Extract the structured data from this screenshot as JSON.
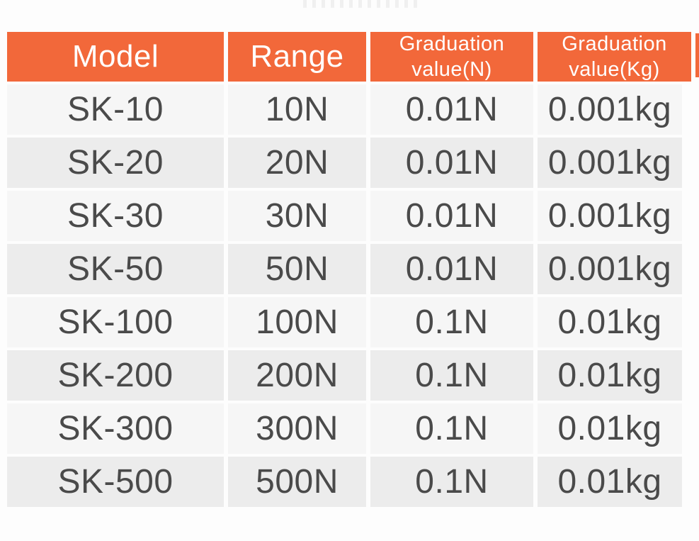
{
  "colors": {
    "header_bg": "#f2683a",
    "header_text": "#ffffff",
    "row_light_bg": "#f6f6f6",
    "row_dark_bg": "#ececec",
    "cell_text": "#4a4a4a"
  },
  "table": {
    "columns": [
      {
        "label": "Model",
        "lines": [
          "Model"
        ]
      },
      {
        "label": "Range",
        "lines": [
          "Range"
        ]
      },
      {
        "label": "Graduation value(N)",
        "lines": [
          "Graduation",
          "value(N)"
        ]
      },
      {
        "label": "Graduation value(Kg)",
        "lines": [
          "Graduation",
          "value(Kg)"
        ]
      }
    ]
  },
  "chart_data": {
    "type": "table",
    "columns": [
      "Model",
      "Range",
      "Graduation value(N)",
      "Graduation value(Kg)"
    ],
    "rows": [
      [
        "SK-10",
        "10N",
        "0.01N",
        "0.001kg"
      ],
      [
        "SK-20",
        "20N",
        "0.01N",
        "0.001kg"
      ],
      [
        "SK-30",
        "30N",
        "0.01N",
        "0.001kg"
      ],
      [
        "SK-50",
        "50N",
        "0.01N",
        "0.001kg"
      ],
      [
        "SK-100",
        "100N",
        "0.1N",
        "0.01kg"
      ],
      [
        "SK-200",
        "200N",
        "0.1N",
        "0.01kg"
      ],
      [
        "SK-300",
        "300N",
        "0.1N",
        "0.01kg"
      ],
      [
        "SK-500",
        "500N",
        "0.1N",
        "0.01kg"
      ]
    ],
    "layout": {
      "header_fill": "#f2683a",
      "header_text_color": "#ffffff",
      "row_striping": [
        "#f6f6f6",
        "#ececec"
      ],
      "grid": false,
      "legend": "none"
    }
  }
}
